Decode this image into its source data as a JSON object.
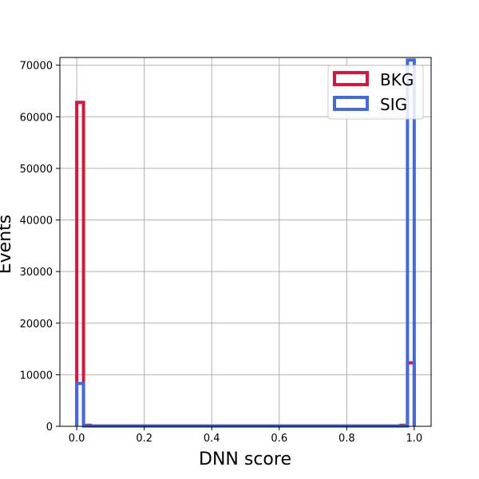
{
  "chart_data": {
    "type": "histogram-step",
    "xlabel": "DNN score",
    "ylabel": "Events",
    "xlim": [
      -0.05,
      1.05
    ],
    "ylim": [
      0,
      71500
    ],
    "bin_edges": [
      0.0,
      0.02,
      0.04,
      0.96,
      0.98,
      1.0
    ],
    "xticks": [
      0.0,
      0.2,
      0.4,
      0.6,
      0.8,
      1.0
    ],
    "xtick_labels": [
      "0.0",
      "0.2",
      "0.4",
      "0.6",
      "0.8",
      "1.0"
    ],
    "yticks": [
      0,
      10000,
      20000,
      30000,
      40000,
      50000,
      60000,
      70000
    ],
    "ytick_labels": [
      "0",
      "10000",
      "20000",
      "30000",
      "40000",
      "50000",
      "60000",
      "70000"
    ],
    "grid": true,
    "legend_position": "top-right",
    "series": [
      {
        "name": "BKG",
        "color": "#dc143c",
        "counts": [
          62800,
          200,
          50,
          200,
          12300
        ]
      },
      {
        "name": "SIG",
        "color": "#4169e1",
        "counts": [
          8300,
          50,
          50,
          50,
          71000
        ]
      }
    ]
  }
}
